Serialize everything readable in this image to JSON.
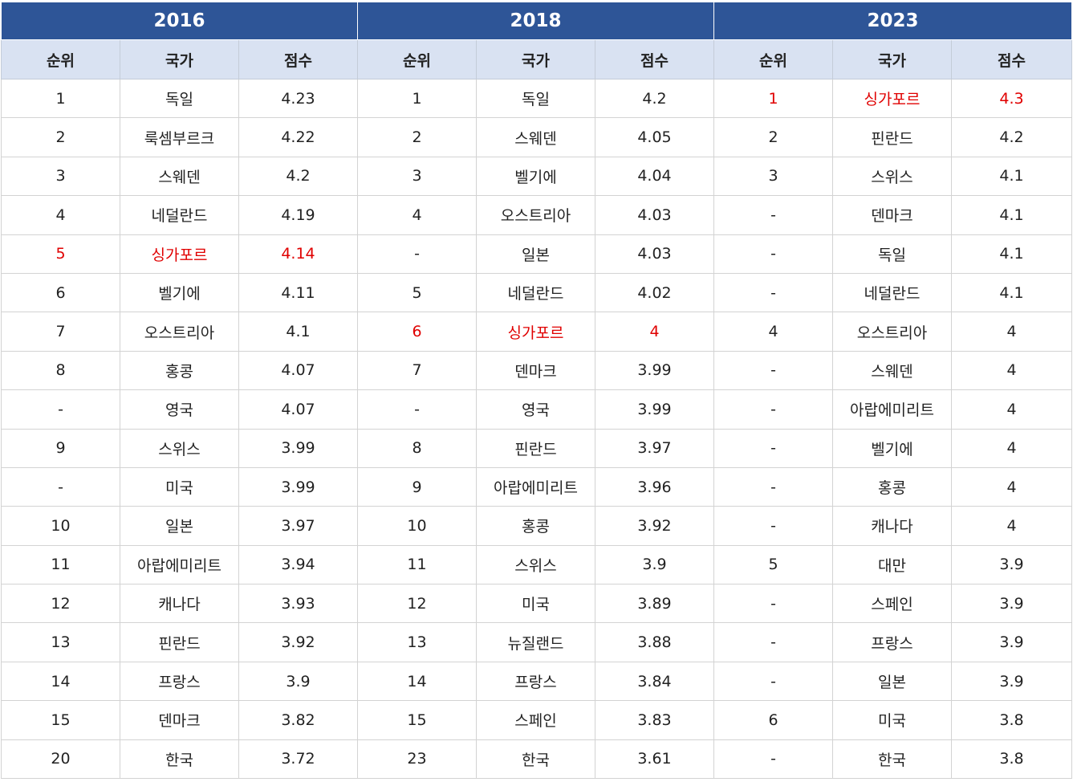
{
  "years": [
    "2016",
    "2018",
    "2023"
  ],
  "columns": [
    "순위",
    "국가",
    "점수"
  ],
  "highlight_color": "#e00000",
  "header_color": "#2e5597",
  "subheader_color": "#d9e2f2",
  "highlight_country": "싱가포르",
  "rankings": {
    "2016": [
      [
        "1",
        "독일",
        "4.23"
      ],
      [
        "2",
        "룩셈부르크",
        "4.22"
      ],
      [
        "3",
        "스웨덴",
        "4.2"
      ],
      [
        "4",
        "네덜란드",
        "4.19"
      ],
      [
        "5",
        "싱가포르",
        "4.14"
      ],
      [
        "6",
        "벨기에",
        "4.11"
      ],
      [
        "7",
        "오스트리아",
        "4.1"
      ],
      [
        "8",
        "홍콩",
        "4.07"
      ],
      [
        "-",
        "영국",
        "4.07"
      ],
      [
        "9",
        "스위스",
        "3.99"
      ],
      [
        "-",
        "미국",
        "3.99"
      ],
      [
        "10",
        "일본",
        "3.97"
      ],
      [
        "11",
        "아랍에미리트",
        "3.94"
      ],
      [
        "12",
        "캐나다",
        "3.93"
      ],
      [
        "13",
        "핀란드",
        "3.92"
      ],
      [
        "14",
        "프랑스",
        "3.9"
      ],
      [
        "15",
        "덴마크",
        "3.82"
      ],
      [
        "20",
        "한국",
        "3.72"
      ]
    ],
    "2018": [
      [
        "1",
        "독일",
        "4.2"
      ],
      [
        "2",
        "스웨덴",
        "4.05"
      ],
      [
        "3",
        "벨기에",
        "4.04"
      ],
      [
        "4",
        "오스트리아",
        "4.03"
      ],
      [
        "-",
        "일본",
        "4.03"
      ],
      [
        "5",
        "네덜란드",
        "4.02"
      ],
      [
        "6",
        "싱가포르",
        "4"
      ],
      [
        "7",
        "덴마크",
        "3.99"
      ],
      [
        "-",
        "영국",
        "3.99"
      ],
      [
        "8",
        "핀란드",
        "3.97"
      ],
      [
        "9",
        "아랍에미리트",
        "3.96"
      ],
      [
        "10",
        "홍콩",
        "3.92"
      ],
      [
        "11",
        "스위스",
        "3.9"
      ],
      [
        "12",
        "미국",
        "3.89"
      ],
      [
        "13",
        "뉴질랜드",
        "3.88"
      ],
      [
        "14",
        "프랑스",
        "3.84"
      ],
      [
        "15",
        "스페인",
        "3.83"
      ],
      [
        "23",
        "한국",
        "3.61"
      ]
    ],
    "2023": [
      [
        "1",
        "싱가포르",
        "4.3"
      ],
      [
        "2",
        "핀란드",
        "4.2"
      ],
      [
        "3",
        "스위스",
        "4.1"
      ],
      [
        "-",
        "덴마크",
        "4.1"
      ],
      [
        "-",
        "독일",
        "4.1"
      ],
      [
        "-",
        "네덜란드",
        "4.1"
      ],
      [
        "4",
        "오스트리아",
        "4"
      ],
      [
        "-",
        "스웨덴",
        "4"
      ],
      [
        "-",
        "아랍에미리트",
        "4"
      ],
      [
        "-",
        "벨기에",
        "4"
      ],
      [
        "-",
        "홍콩",
        "4"
      ],
      [
        "-",
        "캐나다",
        "4"
      ],
      [
        "5",
        "대만",
        "3.9"
      ],
      [
        "-",
        "스페인",
        "3.9"
      ],
      [
        "-",
        "프랑스",
        "3.9"
      ],
      [
        "-",
        "일본",
        "3.9"
      ],
      [
        "6",
        "미국",
        "3.8"
      ],
      [
        "-",
        "한국",
        "3.8"
      ]
    ]
  }
}
